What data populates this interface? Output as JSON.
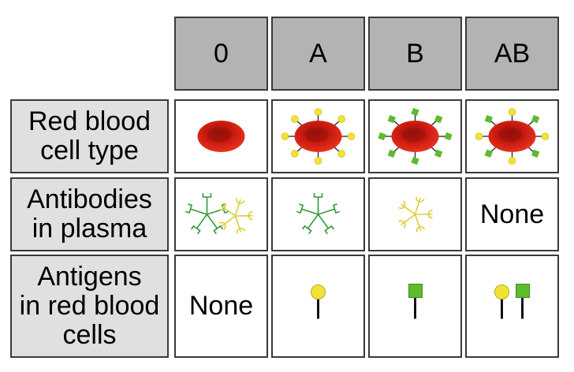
{
  "columns": [
    "0",
    "A",
    "B",
    "AB"
  ],
  "rows": [
    {
      "label": "Red blood\ncell type",
      "cells": [
        {
          "icon": "red-blood-cell-icon",
          "antigens": "none"
        },
        {
          "icon": "red-blood-cell-antigen-a-icon",
          "antigens": "A"
        },
        {
          "icon": "red-blood-cell-antigen-b-icon",
          "antigens": "B"
        },
        {
          "icon": "red-blood-cell-antigen-ab-icon",
          "antigens": "AB"
        }
      ]
    },
    {
      "label": "Antibodies\nin plasma",
      "cells": [
        {
          "icon": "antibodies-green-yellow-icon",
          "antibodies": [
            "green",
            "yellow"
          ]
        },
        {
          "icon": "antibody-green-icon",
          "antibodies": [
            "green"
          ]
        },
        {
          "icon": "antibody-yellow-icon",
          "antibodies": [
            "yellow"
          ]
        },
        {
          "text": "None"
        }
      ]
    },
    {
      "label": "Antigens\nin red blood\ncells",
      "cells": [
        {
          "text": "None"
        },
        {
          "icon": "antigen-a-pin-icon",
          "pins": [
            "A"
          ]
        },
        {
          "icon": "antigen-b-pin-icon",
          "pins": [
            "B"
          ]
        },
        {
          "icon": "antigen-ab-pins-icon",
          "pins": [
            "A",
            "B"
          ]
        }
      ]
    }
  ],
  "colors": {
    "header": "#b3b3b3",
    "label": "#e0e0e0",
    "antigen_a": "#f2e234",
    "antigen_b": "#5dbb2e",
    "antibody_green": "#2e9a3a",
    "antibody_yellow": "#d9cf3a",
    "cell": "#d8261a"
  }
}
